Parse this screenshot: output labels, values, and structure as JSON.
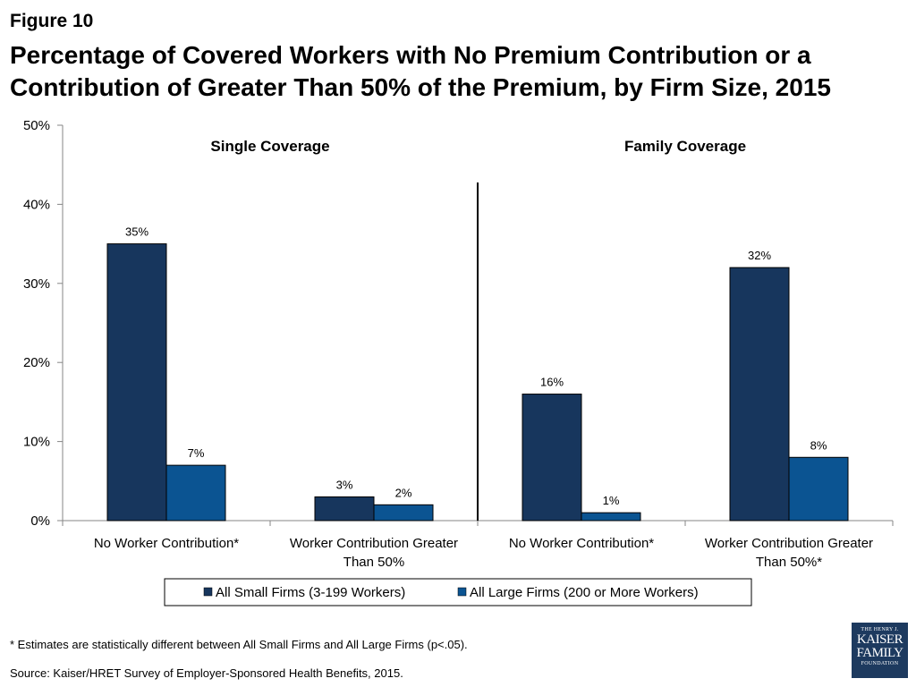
{
  "figure_label": "Figure 10",
  "title_lines": [
    "Percentage of Covered Workers with No Premium Contribution or a",
    "Contribution of Greater Than 50% of the Premium, by Firm Size, 2015"
  ],
  "footnote": "* Estimates are statistically different between All Small Firms and All Large Firms (p<.05).",
  "source": "Source:  Kaiser/HRET Survey of Employer-Sponsored Health Benefits, 2015.",
  "logo": {
    "line1": "THE HENRY J.",
    "line2": "KAISER",
    "line3": "FAMILY",
    "line4": "FOUNDATION"
  },
  "colors": {
    "small_firms": "#17365d",
    "large_firms": "#0b5492",
    "axis": "#868686"
  },
  "chart_data": {
    "type": "bar",
    "title": "Percentage of Covered Workers with No Premium Contribution or a Contribution of Greater Than 50% of the Premium, by Firm Size, 2015",
    "ylim": [
      0,
      50
    ],
    "ytick_labels": [
      "0%",
      "10%",
      "20%",
      "30%",
      "40%",
      "50%"
    ],
    "yticks": [
      0,
      10,
      20,
      30,
      40,
      50
    ],
    "grid": false,
    "legend_position": "bottom",
    "panel_labels": [
      "Single Coverage",
      "Family Coverage"
    ],
    "categories": [
      [
        "No Worker Contribution*"
      ],
      [
        "Worker Contribution Greater",
        "Than 50%"
      ],
      [
        "No Worker Contribution*"
      ],
      [
        "Worker Contribution Greater",
        "Than 50%*"
      ]
    ],
    "series": [
      {
        "name": "All Small Firms (3-199 Workers)",
        "values": [
          35,
          3,
          16,
          32
        ],
        "labels": [
          "35%",
          "3%",
          "16%",
          "32%"
        ]
      },
      {
        "name": "All Large Firms (200 or More Workers)",
        "values": [
          7,
          2,
          1,
          8
        ],
        "labels": [
          "7%",
          "2%",
          "1%",
          "8%"
        ]
      }
    ]
  }
}
